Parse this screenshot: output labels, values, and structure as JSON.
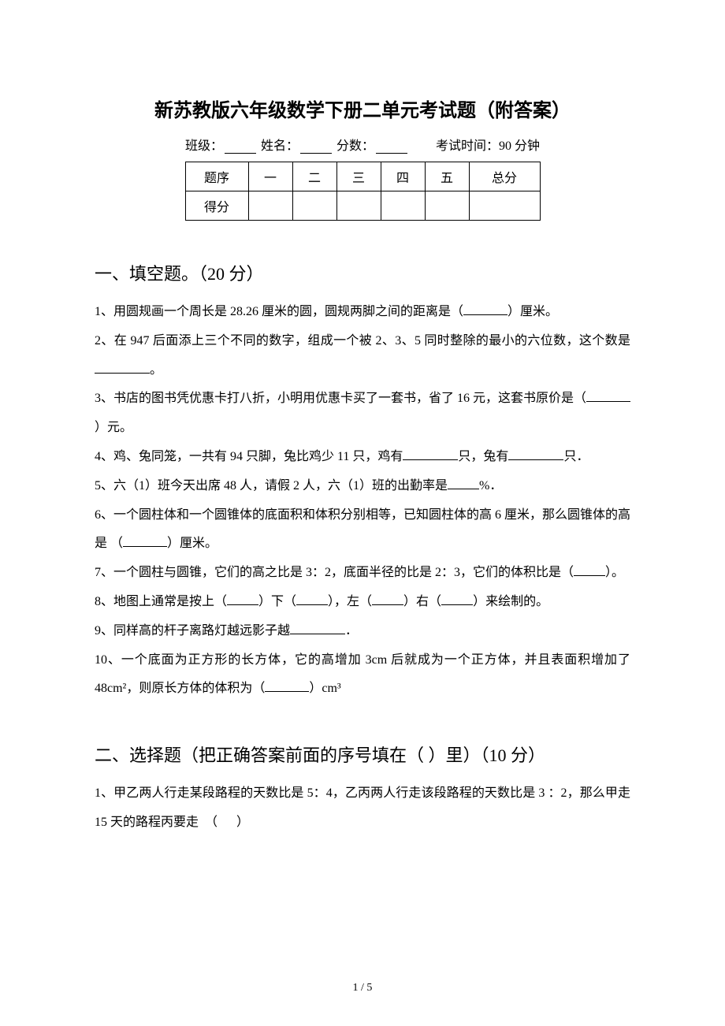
{
  "title": "新苏教版六年级数学下册二单元考试题（附答案）",
  "info": {
    "class_label": "班级：",
    "name_label": "姓名：",
    "score_label": "分数：",
    "exam_time": "考试时间：90 分钟"
  },
  "score_table": {
    "header_label": "题序",
    "score_label": "得分",
    "columns": [
      "一",
      "二",
      "三",
      "四",
      "五",
      "总分"
    ]
  },
  "section1": {
    "heading": "一、填空题。（20 分）",
    "q1_a": "1、用圆规画一个周长是 28.26 厘米的圆，圆规两脚之间的距离是（",
    "q1_b": "）厘米。",
    "q2_a": "2、在 947 后面添上三个不同的数字，组成一个被 2、3、5 同时整除的最小的六位数，这个数是",
    "q2_b": "。",
    "q3_a": "3、书店的图书凭优惠卡打八折，小明用优惠卡买了一套书，省了 16 元，这套书原价是（",
    "q3_b": "）元。",
    "q4_a": "4、鸡、兔同笼，一共有 94 只脚，兔比鸡少 11 只，鸡有",
    "q4_b": "只，兔有",
    "q4_c": "只．",
    "q5_a": "5、六（1）班今天出席 48 人，请假 2 人，六（1）班的出勤率是",
    "q5_b": "%．",
    "q6_a": "6、一个圆柱体和一个圆锥体的底面积和体积分别相等，已知圆柱体的高 6 厘米，那么圆锥体的高是 （",
    "q6_b": "）厘米。",
    "q7_a": "7、一个圆柱与圆锥，它们的高之比是 3：2，底面半径的比是 2：3，它们的体积比是（",
    "q7_b": "）。",
    "q8_a": "8、地图上通常是按上（",
    "q8_b": "）下（",
    "q8_c": "），左（",
    "q8_d": "）右（",
    "q8_e": "）来绘制的。",
    "q9_a": "9、同样高的杆子离路灯越远影子越",
    "q9_b": "．",
    "q10_a": "10、一个底面为正方形的长方体，它的高增加 3cm 后就成为一个正方体，并且表面积增加了 48cm²，则原长方体的体积为（",
    "q10_b": "）cm³"
  },
  "section2": {
    "heading": "二、选择题（把正确答案前面的序号填在（ ）里）（10 分）",
    "q1": "1、甲乙两人行走某段路程的天数比是 5：4，乙丙两人行走该段路程的天数比是 3 ：2，那么甲走 15 天的路程丙要走  （      ）"
  },
  "page_num": "1 / 5"
}
